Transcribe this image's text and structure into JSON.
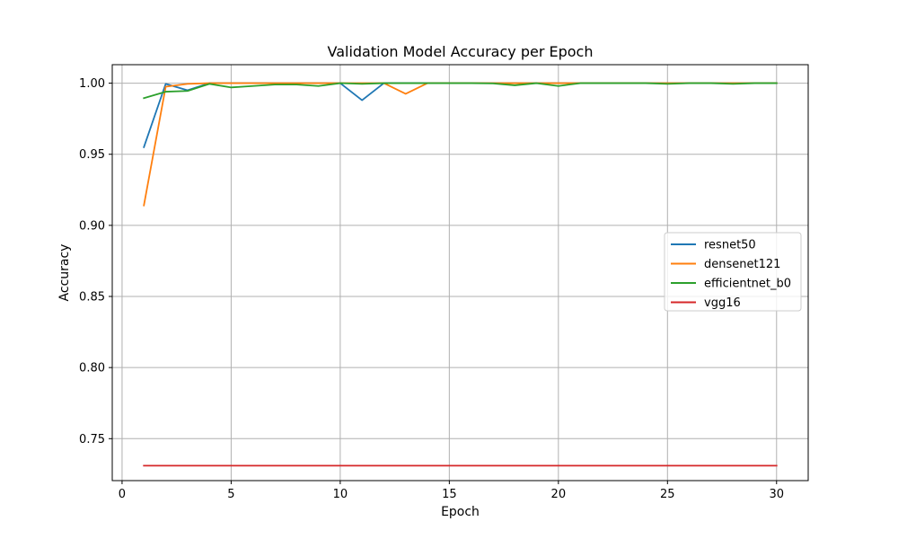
{
  "chart_data": {
    "type": "line",
    "title": "Validation Model Accuracy per Epoch",
    "xlabel": "Epoch",
    "ylabel": "Accuracy",
    "xlim": [
      -0.45,
      31.45
    ],
    "ylim": [
      0.7205,
      1.013
    ],
    "x_ticks": [
      0,
      5,
      10,
      15,
      20,
      25,
      30
    ],
    "y_ticks": [
      0.75,
      0.8,
      0.85,
      0.9,
      0.95,
      1.0
    ],
    "x_tick_labels": [
      "0",
      "5",
      "10",
      "15",
      "20",
      "25",
      "30"
    ],
    "y_tick_labels": [
      "0.75",
      "0.80",
      "0.85",
      "0.90",
      "0.95",
      "1.00"
    ],
    "grid": true,
    "legend_position": "center-right",
    "x": [
      1,
      2,
      3,
      4,
      5,
      6,
      7,
      8,
      9,
      10,
      11,
      12,
      13,
      14,
      15,
      16,
      17,
      18,
      19,
      20,
      21,
      22,
      23,
      24,
      25,
      26,
      27,
      28,
      29,
      30
    ],
    "series": [
      {
        "name": "resnet50",
        "color": "#1f77b4",
        "values": [
          0.955,
          0.9995,
          0.995,
          1.0,
          1.0,
          1.0,
          1.0,
          1.0,
          1.0,
          1.0,
          0.988,
          1.0,
          1.0,
          1.0,
          1.0,
          1.0,
          1.0,
          1.0,
          1.0,
          1.0,
          1.0,
          1.0,
          1.0,
          1.0,
          1.0,
          1.0,
          1.0,
          1.0,
          1.0,
          1.0
        ]
      },
      {
        "name": "densenet121",
        "color": "#ff7f0e",
        "values": [
          0.914,
          0.9975,
          0.9995,
          1.0,
          1.0,
          1.0,
          1.0,
          1.0,
          1.0,
          1.0,
          1.0,
          1.0,
          0.9925,
          1.0,
          1.0,
          1.0,
          1.0,
          1.0,
          1.0,
          1.0,
          1.0,
          1.0,
          1.0,
          1.0,
          1.0,
          1.0,
          1.0,
          1.0,
          1.0,
          1.0
        ]
      },
      {
        "name": "efficientnet_b0",
        "color": "#2ca02c",
        "values": [
          0.9895,
          0.994,
          0.9945,
          0.9995,
          0.997,
          0.998,
          0.999,
          0.999,
          0.998,
          1.0,
          0.9995,
          1.0,
          1.0,
          1.0,
          1.0,
          1.0,
          0.9998,
          0.9985,
          1.0,
          0.998,
          1.0,
          1.0,
          1.0,
          1.0,
          0.9995,
          1.0,
          1.0,
          0.9995,
          1.0,
          1.0
        ]
      },
      {
        "name": "vgg16",
        "color": "#d62728",
        "values": [
          0.731,
          0.731,
          0.731,
          0.731,
          0.731,
          0.731,
          0.731,
          0.731,
          0.731,
          0.731,
          0.731,
          0.731,
          0.731,
          0.731,
          0.731,
          0.731,
          0.731,
          0.731,
          0.731,
          0.731,
          0.731,
          0.731,
          0.731,
          0.731,
          0.731,
          0.731,
          0.731,
          0.731,
          0.731,
          0.731
        ]
      }
    ]
  }
}
